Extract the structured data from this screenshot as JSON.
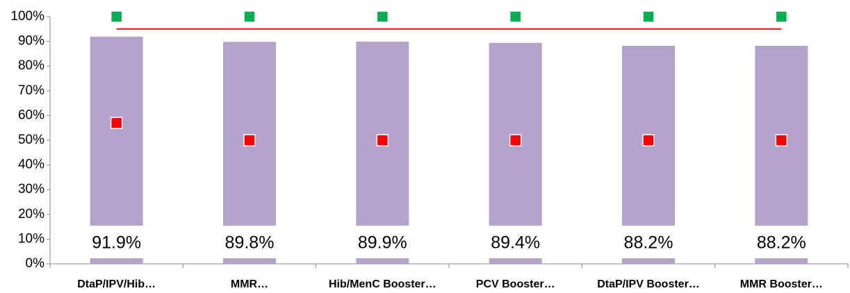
{
  "chart_data": {
    "type": "bar",
    "categories": [
      "DtaP/IPV/Hib…",
      "MMR…",
      "Hib/MenC Booster…",
      "PCV Booster…",
      "DtaP/IPV Booster…",
      "MMR Booster…"
    ],
    "series": [
      {
        "color": "#b1a3c9",
        "style": "bar",
        "values": [
          91.9,
          89.8,
          89.9,
          89.4,
          88.2,
          88.2
        ],
        "value_labels": [
          "91.9%",
          "89.8%",
          "89.9%",
          "89.4%",
          "88.2%",
          "88.2%"
        ]
      },
      {
        "color": "#00b050",
        "style": "marker",
        "values": [
          100,
          100,
          100,
          100,
          100,
          100
        ]
      },
      {
        "color": "#ff0000",
        "style": "marker",
        "values": [
          57,
          50,
          50,
          50,
          50,
          50
        ]
      },
      {
        "color": "#ff0000",
        "style": "line",
        "values": [
          95,
          95,
          95,
          95,
          95,
          95
        ]
      }
    ],
    "ylim": [
      0,
      100
    ],
    "yticks": [
      {
        "value": 0,
        "label": "0%"
      },
      {
        "value": 10,
        "label": "10%"
      },
      {
        "value": 20,
        "label": "20%"
      },
      {
        "value": 30,
        "label": "30%"
      },
      {
        "value": 40,
        "label": "40%"
      },
      {
        "value": 50,
        "label": "50%"
      },
      {
        "value": 60,
        "label": "60%"
      },
      {
        "value": 70,
        "label": "70%"
      },
      {
        "value": 80,
        "label": "80%"
      },
      {
        "value": 90,
        "label": "90%"
      },
      {
        "value": 100,
        "label": "100%"
      }
    ]
  }
}
